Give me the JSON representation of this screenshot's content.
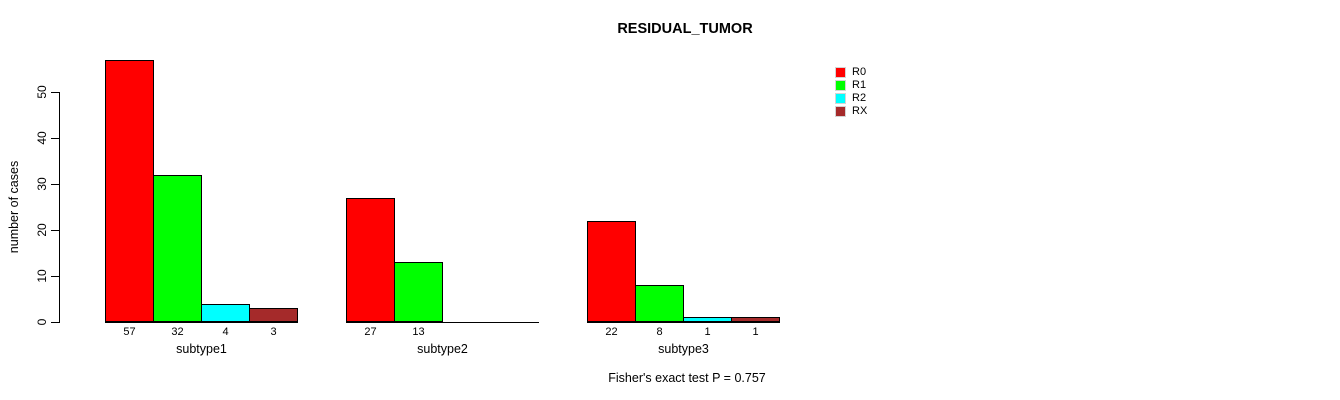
{
  "chart_data": {
    "type": "bar",
    "title": "RESIDUAL_TUMOR",
    "ylabel": "number of cases",
    "xlabel": "",
    "yticks": [
      0,
      10,
      20,
      30,
      40,
      50
    ],
    "ylim": [
      0,
      57
    ],
    "grid": false,
    "legend_position": "right",
    "categories": [
      "subtype1",
      "subtype2",
      "subtype3"
    ],
    "series": [
      {
        "name": "R0",
        "color": "#ff0000",
        "values": [
          57,
          27,
          22
        ]
      },
      {
        "name": "R1",
        "color": "#00ff00",
        "values": [
          32,
          13,
          8
        ]
      },
      {
        "name": "R2",
        "color": "#00ffff",
        "values": [
          4,
          0,
          1
        ]
      },
      {
        "name": "RX",
        "color": "#a52a2a",
        "values": [
          3,
          0,
          1
        ]
      }
    ],
    "bar_value_labels_shown_when_zero": false,
    "annotation": "Fisher's exact test P = 0.757",
    "colors": {
      "axis": "#000000",
      "text": "#000000",
      "background": "#ffffff"
    }
  }
}
